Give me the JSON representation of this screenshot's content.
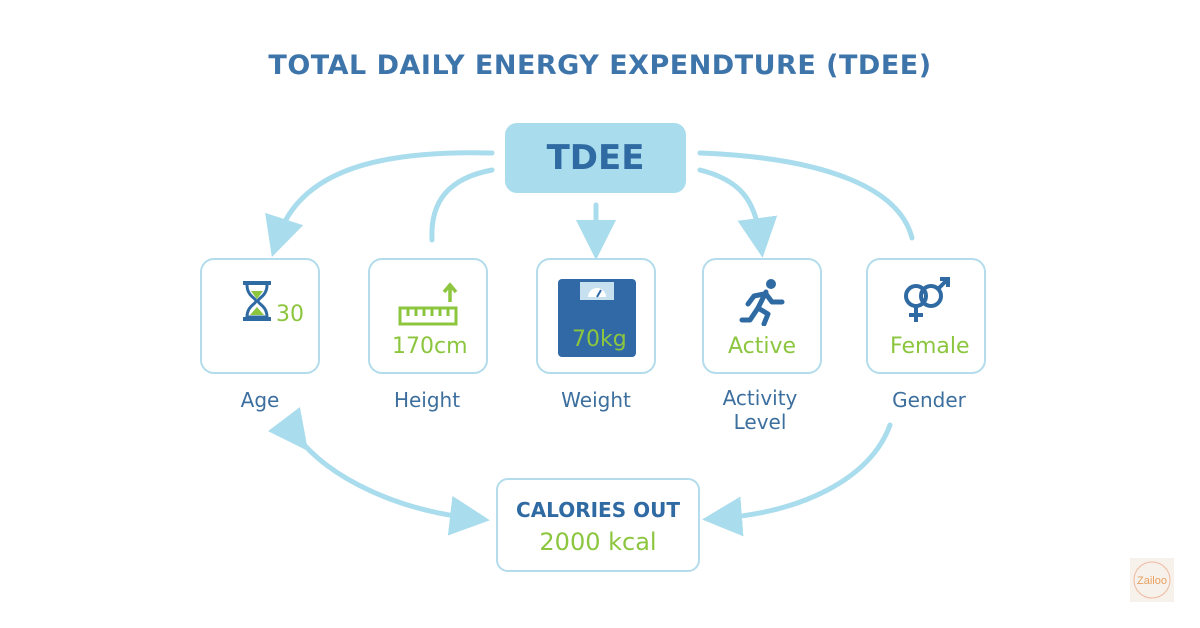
{
  "title": "TOTAL DAILY ENERGY EXPENDTURE (TDEE)",
  "center": {
    "label": "TDEE"
  },
  "factors": [
    {
      "label": "Age",
      "value": "30",
      "icon": "hourglass-icon"
    },
    {
      "label": "Height",
      "value": "170cm",
      "icon": "ruler-icon"
    },
    {
      "label": "Weight",
      "value": "70kg",
      "icon": "scale-icon"
    },
    {
      "label_line1": "Activity",
      "label_line2": "Level",
      "value": "Active",
      "icon": "running-person-icon"
    },
    {
      "label": "Gender",
      "value": "Female",
      "icon": "gender-icon"
    }
  ],
  "output": {
    "label": "CALORIES OUT",
    "value": "2000 kcal"
  },
  "logo": {
    "text": "Zailoo"
  },
  "colors": {
    "title": "#3d74aa",
    "accent_green": "#8cc63f",
    "box_border": "#b3dcec",
    "tdee_fill": "#a9dcec",
    "dark_blue": "#2f6aa3"
  }
}
